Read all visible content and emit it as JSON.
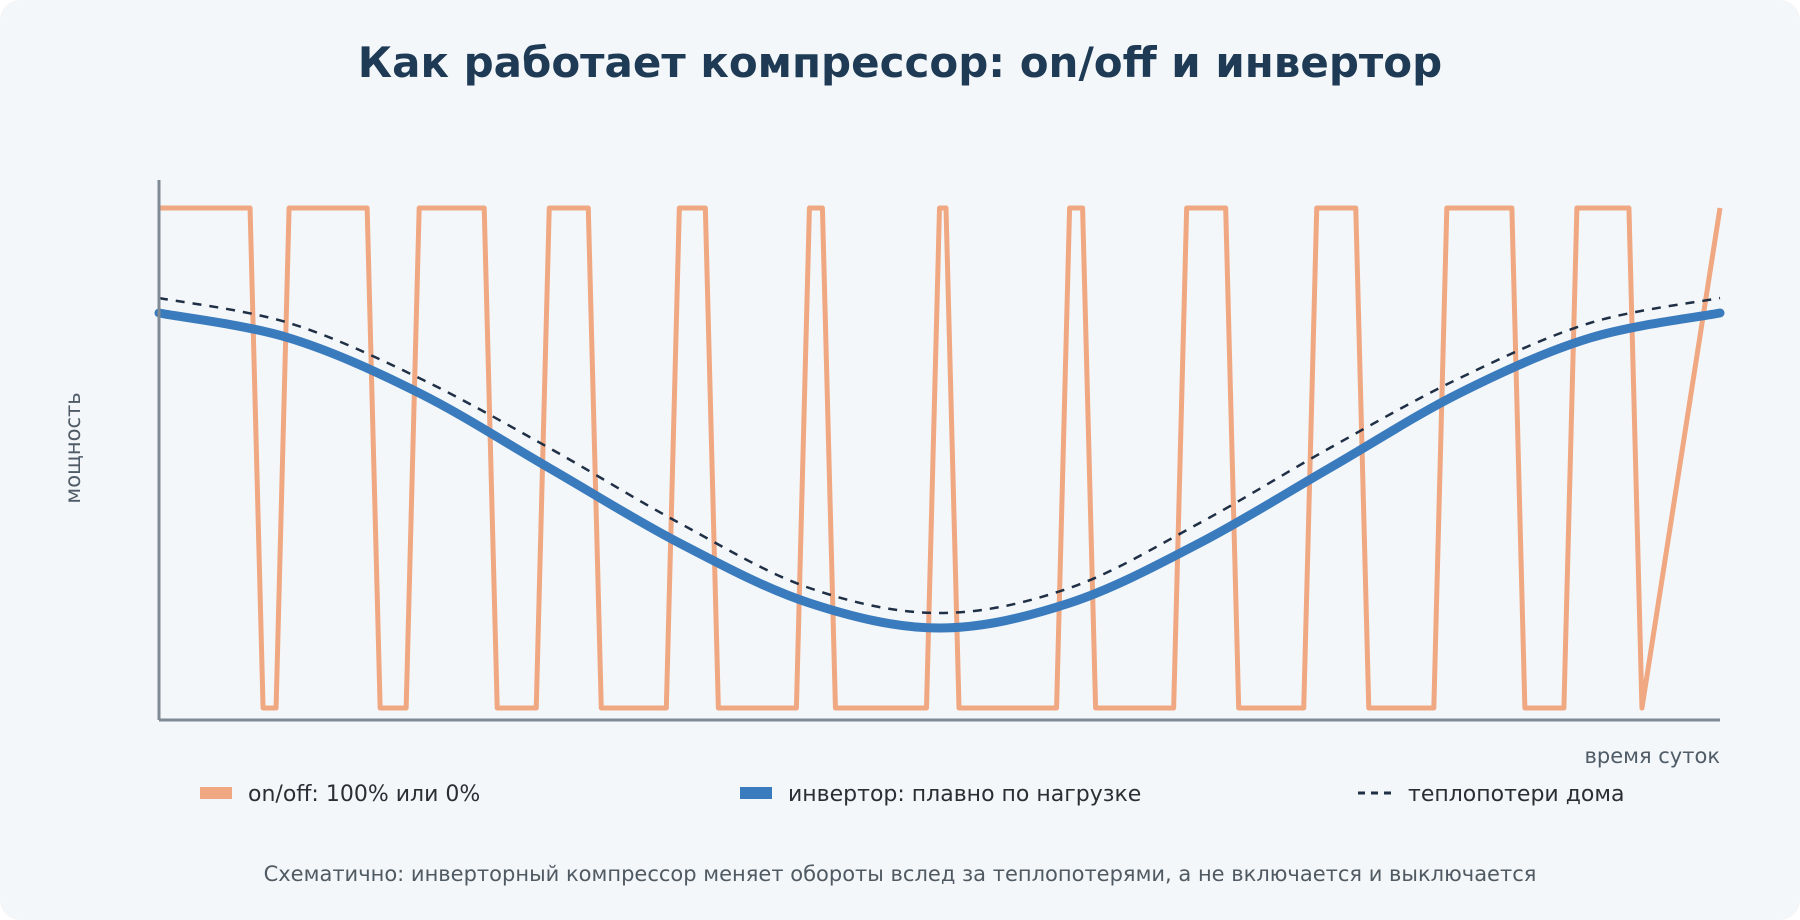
{
  "colors": {
    "background": "#f3f7fa",
    "title": "#1e3a54",
    "axis": "#7f8a94",
    "onoff": "#f0a882",
    "inverter": "#3a7bbd",
    "heatloss": "#1f2f45"
  },
  "chart_data": {
    "type": "line",
    "title": "Как работает компрессор: on/off и инвертор",
    "xlabel": "время суток",
    "ylabel": "мощность",
    "xlim": [
      0,
      24
    ],
    "ylim": [
      0,
      100
    ],
    "grid": false,
    "legend_position": "bottom",
    "series": [
      {
        "name": "on/off: 100% или 0%",
        "style": "solid-thin",
        "color": "#f0a882",
        "x": [
          0,
          1.4,
          1.6,
          1.8,
          2.0,
          3.2,
          3.4,
          3.8,
          4.0,
          5.0,
          5.2,
          5.8,
          6.0,
          6.6,
          6.8,
          7.8,
          8.0,
          8.4,
          8.6,
          9.8,
          10.0,
          10.2,
          10.4,
          11.8,
          12.0,
          12.1,
          12.3,
          13.8,
          14.0,
          14.2,
          14.4,
          15.6,
          15.8,
          16.4,
          16.6,
          17.6,
          17.8,
          18.4,
          18.6,
          19.6,
          19.8,
          20.8,
          21.0,
          21.6,
          21.8,
          22.6,
          22.8,
          24.0
        ],
        "y": [
          100,
          100,
          0,
          0,
          100,
          100,
          0,
          0,
          100,
          100,
          0,
          0,
          100,
          100,
          0,
          0,
          100,
          100,
          0,
          0,
          100,
          100,
          0,
          0,
          100,
          100,
          0,
          0,
          100,
          100,
          0,
          0,
          100,
          100,
          0,
          0,
          100,
          100,
          0,
          0,
          100,
          100,
          0,
          0,
          100,
          100,
          0,
          100
        ]
      },
      {
        "name": "инвертор: плавно по нагрузке",
        "style": "solid-thick",
        "color": "#3a7bbd",
        "x": [
          0,
          2,
          4,
          6,
          8,
          10,
          12,
          14,
          16,
          18,
          20,
          22,
          24
        ],
        "y": [
          79,
          74,
          63,
          48,
          33,
          21,
          16,
          21,
          33,
          48,
          63,
          74,
          79
        ]
      },
      {
        "name": "теплопотери дома",
        "style": "dashed",
        "color": "#1f2f45",
        "x": [
          0,
          2,
          4,
          6,
          8,
          10,
          12,
          14,
          16,
          18,
          20,
          22,
          24
        ],
        "y": [
          82,
          77,
          66,
          52,
          37,
          24,
          19,
          24,
          37,
          52,
          66,
          77,
          82
        ]
      }
    ]
  },
  "footnote": "Схематично: инверторный компрессор меняет обороты вслед за теплопотерями, а не включается и выключается"
}
